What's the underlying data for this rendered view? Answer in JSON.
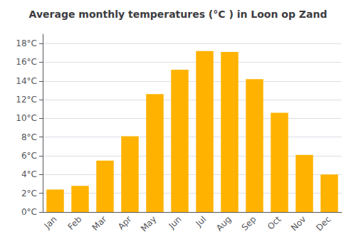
{
  "chart_data": {
    "type": "bar",
    "title": "Average monthly temperatures (°C ) in Loon op Zand",
    "categories": [
      "Jan",
      "Feb",
      "Mar",
      "Apr",
      "May",
      "Jun",
      "Jul",
      "Aug",
      "Sep",
      "Oct",
      "Nov",
      "Dec"
    ],
    "values": [
      2.4,
      2.8,
      5.5,
      8.1,
      12.6,
      15.2,
      17.2,
      17.1,
      14.2,
      10.6,
      6.1,
      4.0
    ],
    "color": "#FFB300",
    "ylim": [
      0,
      19
    ],
    "yticks": [
      {
        "value": 0,
        "label": "0°C"
      },
      {
        "value": 2,
        "label": "2°C"
      },
      {
        "value": 4,
        "label": "4°C"
      },
      {
        "value": 6,
        "label": "6°C"
      },
      {
        "value": 8,
        "label": "8°C"
      },
      {
        "value": 10,
        "label": "10°C"
      },
      {
        "value": 12,
        "label": "12°C"
      },
      {
        "value": 14,
        "label": "14°C"
      },
      {
        "value": 16,
        "label": "16°C"
      },
      {
        "value": 18,
        "label": "18°C"
      }
    ],
    "grid": true
  }
}
